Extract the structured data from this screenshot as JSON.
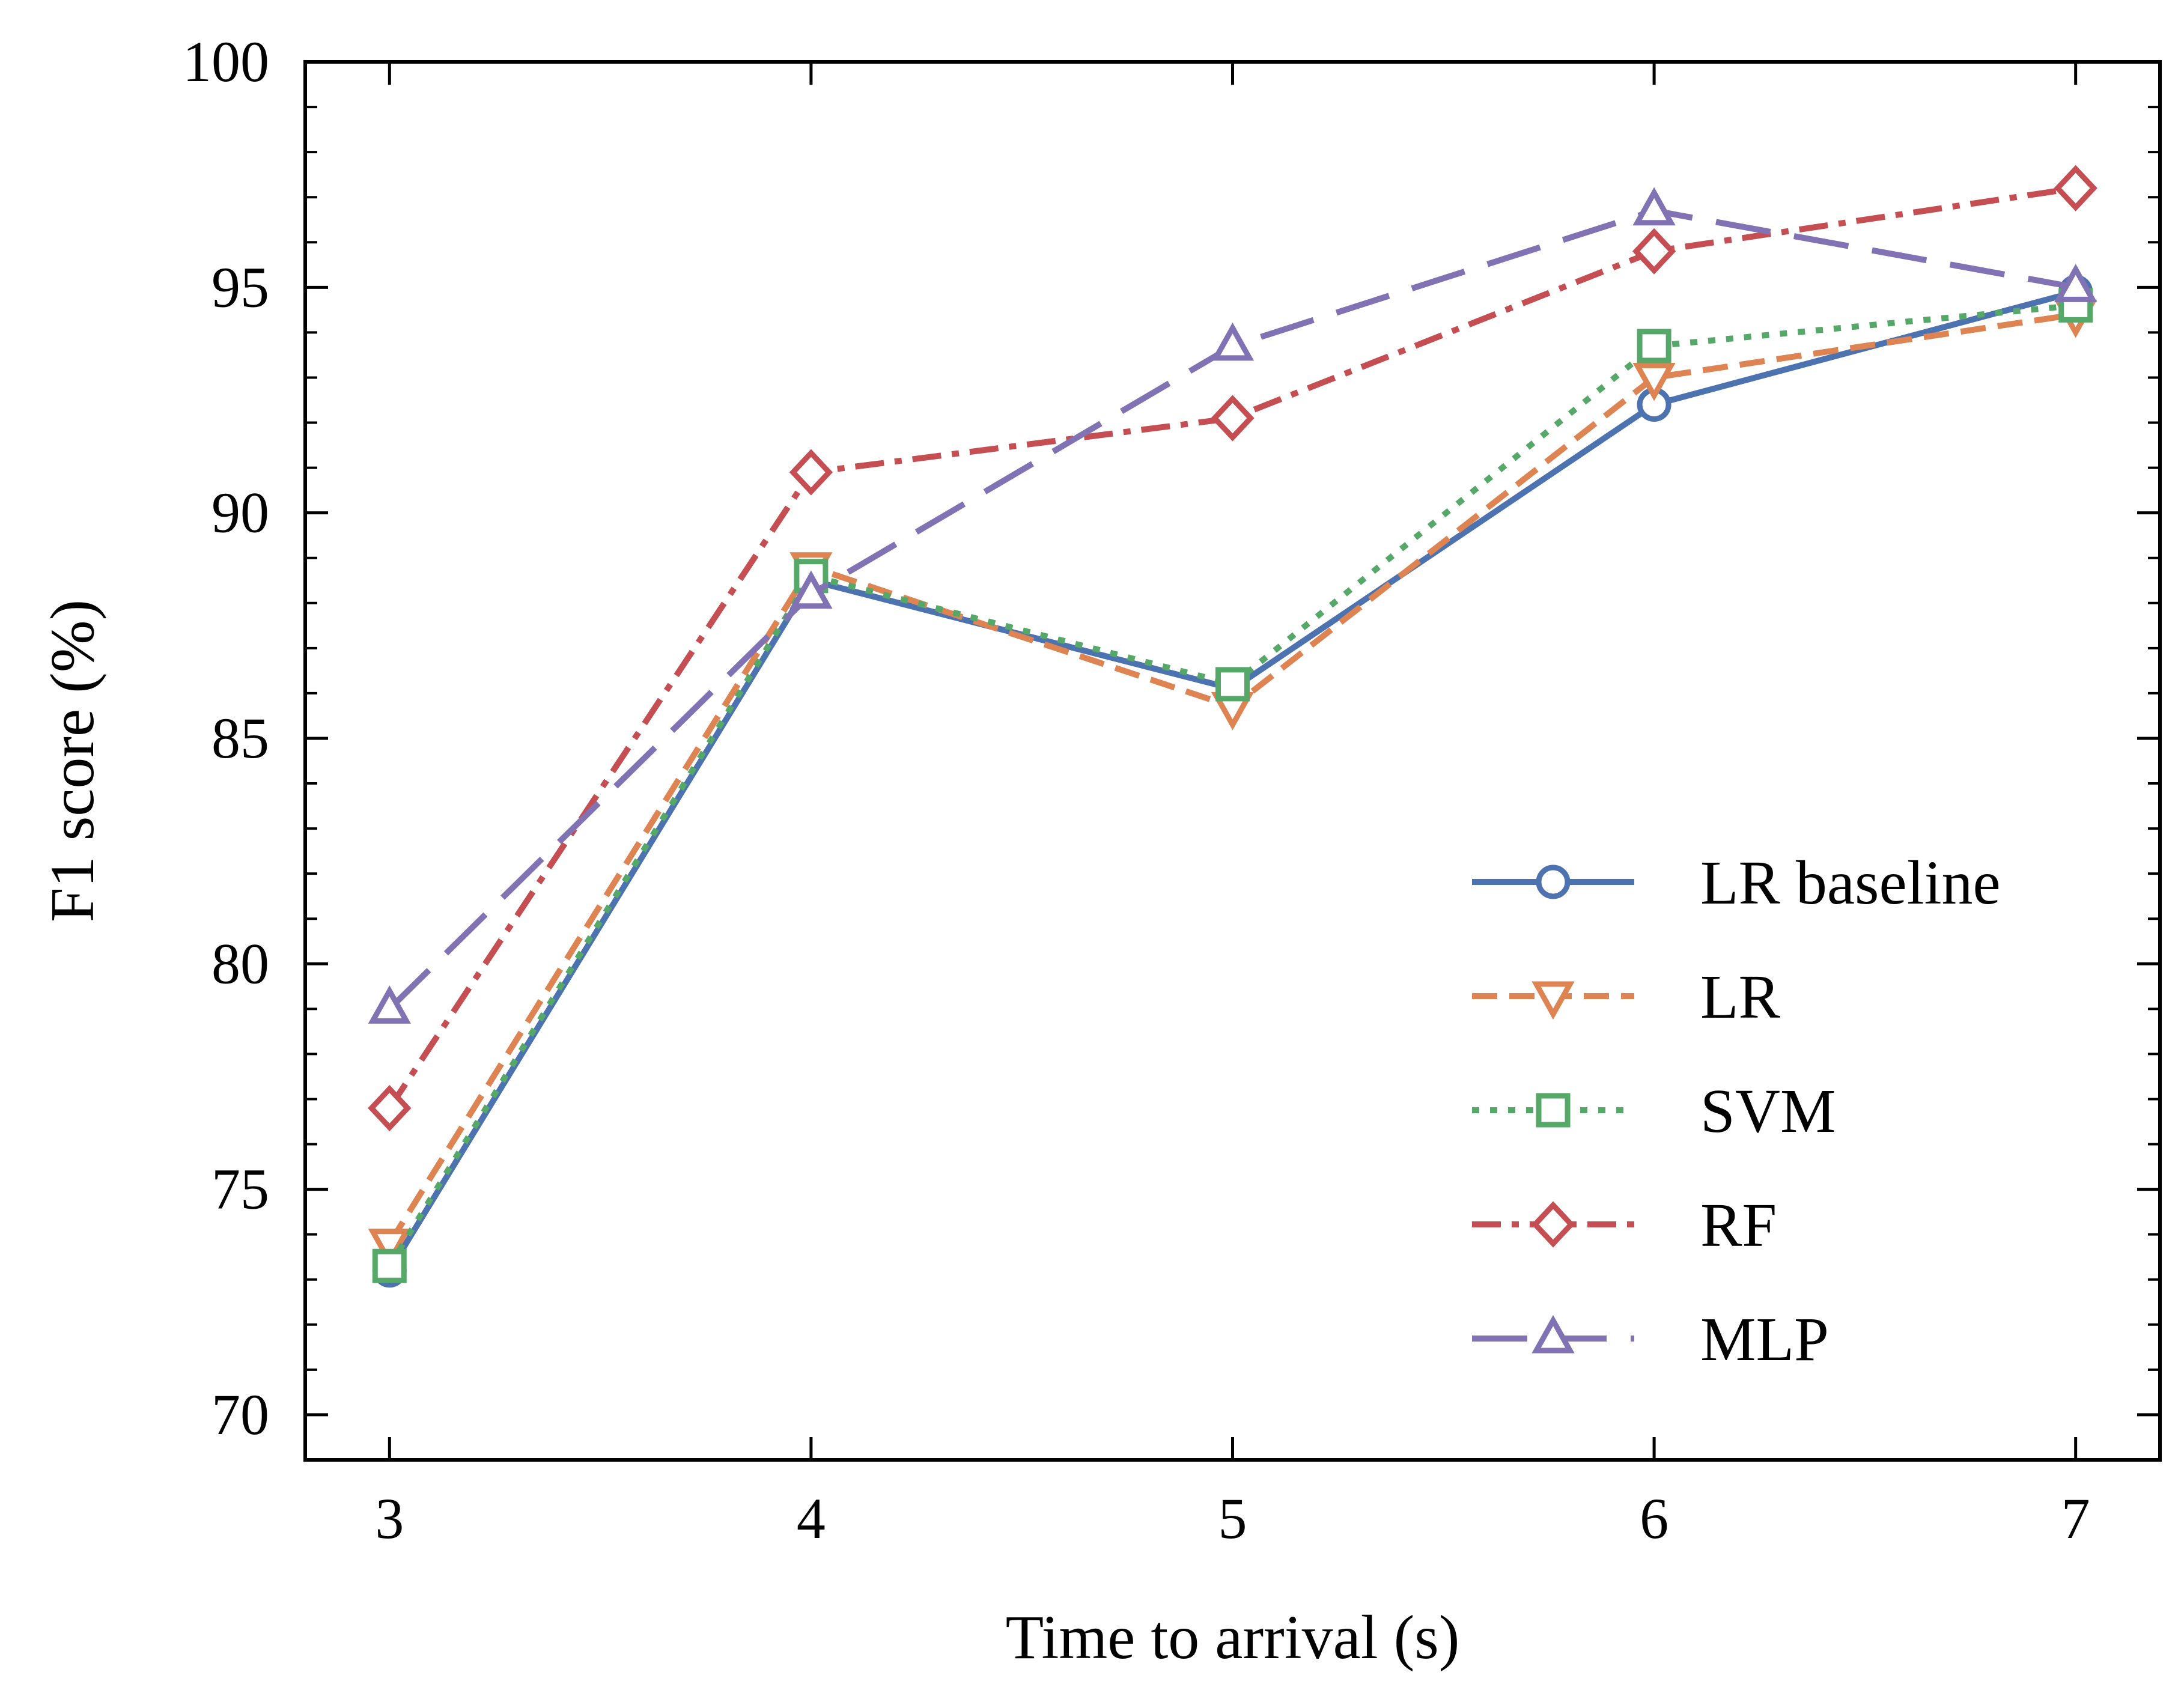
{
  "chart_data": {
    "type": "line",
    "title": "",
    "xlabel": "Time to arrival (s)",
    "ylabel": "F1 score (%)",
    "xlim": [
      2.8,
      7.2
    ],
    "ylim": [
      69,
      100
    ],
    "x": [
      3,
      4,
      5,
      6,
      7
    ],
    "xticks": [
      "3",
      "4",
      "5",
      "6",
      "7"
    ],
    "yticks": [
      "70",
      "75",
      "80",
      "85",
      "90",
      "95",
      "100"
    ],
    "legend_position": "lower-right",
    "grid": false,
    "series": [
      {
        "name": "LR baseline",
        "color": "#4C72B0",
        "marker": "circle",
        "dash": "solid",
        "values": [
          73.2,
          88.5,
          86.1,
          92.4,
          94.9
        ]
      },
      {
        "name": "LR",
        "color": "#DD8452",
        "marker": "triangle-down",
        "dash": "dashed",
        "values": [
          73.8,
          88.8,
          85.7,
          93.0,
          94.4
        ]
      },
      {
        "name": "SVM",
        "color": "#55A868",
        "marker": "square",
        "dash": "dotted",
        "values": [
          73.3,
          88.6,
          86.2,
          93.7,
          94.6
        ]
      },
      {
        "name": "RF",
        "color": "#C44E52",
        "marker": "diamond",
        "dash": "dashdot",
        "values": [
          76.8,
          90.9,
          92.1,
          95.8,
          97.2
        ]
      },
      {
        "name": "MLP",
        "color": "#8172B3",
        "marker": "triangle-up",
        "dash": "longdash",
        "values": [
          79.0,
          88.2,
          93.7,
          96.7,
          95.0
        ]
      }
    ]
  }
}
